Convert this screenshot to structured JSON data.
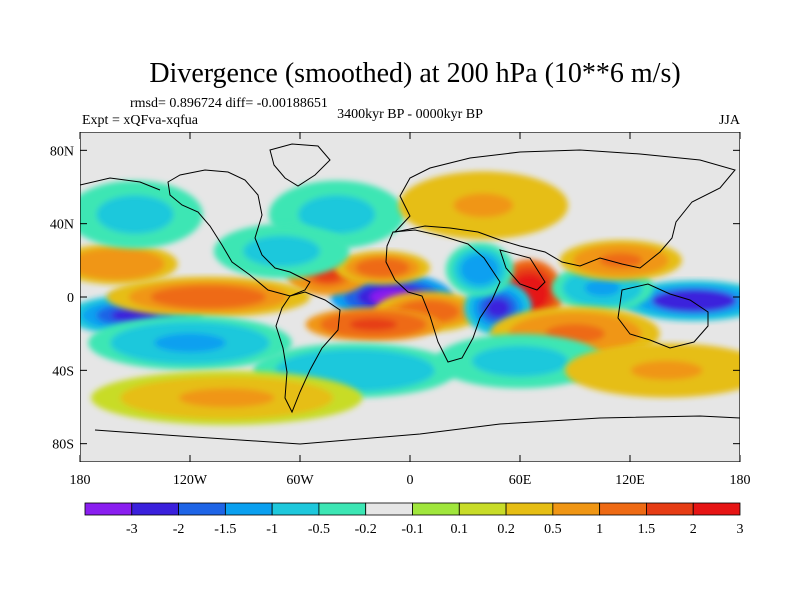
{
  "chart_data": {
    "type": "heatmap",
    "title": "Divergence (smoothed) at 200 hPa (10**6 m/s)",
    "stats": "rmsd= 0.896724 diff= -0.00188651",
    "experiment": "Expt = xQFva-xqfua",
    "period": "3400kyr BP - 0000kyr BP",
    "season": "JJA",
    "x_range": [
      -180,
      180
    ],
    "y_range": [
      -90,
      90
    ],
    "x_ticks": [
      {
        "value": -180,
        "label": "180"
      },
      {
        "value": -120,
        "label": "120W"
      },
      {
        "value": -60,
        "label": "60W"
      },
      {
        "value": 0,
        "label": "0"
      },
      {
        "value": 60,
        "label": "60E"
      },
      {
        "value": 120,
        "label": "120E"
      },
      {
        "value": 180,
        "label": "180"
      }
    ],
    "y_ticks": [
      {
        "value": 80,
        "label": "80N"
      },
      {
        "value": 40,
        "label": "40N"
      },
      {
        "value": 0,
        "label": "0"
      },
      {
        "value": -40,
        "label": "40S"
      },
      {
        "value": -80,
        "label": "80S"
      }
    ],
    "colorbar": {
      "labels": [
        "-3",
        "-2",
        "-1.5",
        "-1",
        "-0.5",
        "-0.2",
        "-0.1",
        "0.1",
        "0.2",
        "0.5",
        "1",
        "1.5",
        "2",
        "3"
      ],
      "colors": [
        "#8a1ef0",
        "#3a20dc",
        "#1e64e6",
        "#0aa0f0",
        "#1ec8dc",
        "#3ce6b4",
        "#e6e6e6",
        "#a0e63c",
        "#c8dc28",
        "#e6be14",
        "#f09614",
        "#ee6a14",
        "#e63c14",
        "#e61414"
      ]
    },
    "anomalies": [
      {
        "lon": -10,
        "lat": 0,
        "value": -3.2,
        "sx": 18,
        "sy": 7
      },
      {
        "lon": -45,
        "lat": 12,
        "value": 1.6,
        "sx": 12,
        "sy": 6
      },
      {
        "lon": -15,
        "lat": 16,
        "value": 1.4,
        "sx": 14,
        "sy": 5
      },
      {
        "lon": 10,
        "lat": -8,
        "value": 1.3,
        "sx": 16,
        "sy": 6
      },
      {
        "lon": -20,
        "lat": -15,
        "value": 1.8,
        "sx": 20,
        "sy": 5
      },
      {
        "lon": 65,
        "lat": 2,
        "value": 3.0,
        "sx": 10,
        "sy": 10
      },
      {
        "lon": 48,
        "lat": -6,
        "value": -2.4,
        "sx": 10,
        "sy": 8
      },
      {
        "lon": 38,
        "lat": 15,
        "value": -1.4,
        "sx": 10,
        "sy": 8
      },
      {
        "lon": 155,
        "lat": -2,
        "value": -2.6,
        "sx": 22,
        "sy": 6
      },
      {
        "lon": 105,
        "lat": 5,
        "value": -1.2,
        "sx": 15,
        "sy": 7
      },
      {
        "lon": 115,
        "lat": 20,
        "value": 1.2,
        "sx": 18,
        "sy": 6
      },
      {
        "lon": 90,
        "lat": -20,
        "value": 1.2,
        "sx": 25,
        "sy": 8
      },
      {
        "lon": -150,
        "lat": -10,
        "value": -2.2,
        "sx": 20,
        "sy": 6
      },
      {
        "lon": -110,
        "lat": 0,
        "value": 1.3,
        "sx": 30,
        "sy": 6
      },
      {
        "lon": -160,
        "lat": 18,
        "value": 0.9,
        "sx": 18,
        "sy": 6
      },
      {
        "lon": -120,
        "lat": -25,
        "value": -1.2,
        "sx": 30,
        "sy": 8
      },
      {
        "lon": -150,
        "lat": 45,
        "value": -0.8,
        "sx": 20,
        "sy": 10
      },
      {
        "lon": -40,
        "lat": 45,
        "value": -0.8,
        "sx": 20,
        "sy": 10
      },
      {
        "lon": 40,
        "lat": 50,
        "value": 0.6,
        "sx": 25,
        "sy": 10
      },
      {
        "lon": -30,
        "lat": -40,
        "value": -1.0,
        "sx": 30,
        "sy": 8
      },
      {
        "lon": 60,
        "lat": -35,
        "value": -0.8,
        "sx": 25,
        "sy": 8
      },
      {
        "lon": -100,
        "lat": -55,
        "value": 0.5,
        "sx": 40,
        "sy": 8
      },
      {
        "lon": 140,
        "lat": -40,
        "value": 0.6,
        "sx": 30,
        "sy": 8
      },
      {
        "lon": -70,
        "lat": 25,
        "value": -0.8,
        "sx": 20,
        "sy": 8
      }
    ]
  }
}
